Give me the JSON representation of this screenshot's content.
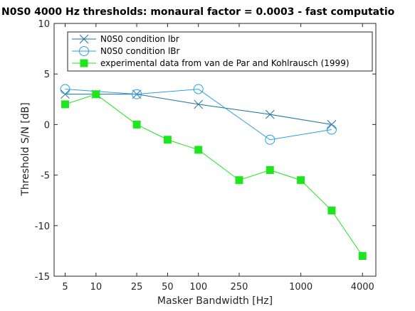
{
  "chart_data": {
    "type": "line",
    "title": "N0S0 4000 Hz thresholds: monaural factor = 0.0003 - fast computatio",
    "xlabel": "Masker Bandwidth [Hz]",
    "ylabel": "Threshold S/N [dB]",
    "xscale": "log",
    "xlim": [
      3.9,
      5400
    ],
    "ylim": [
      -15,
      10
    ],
    "xticks": [
      5,
      10,
      25,
      50,
      100,
      250,
      1000,
      4000
    ],
    "xtick_labels": [
      "5",
      "10",
      "25",
      "50",
      "100",
      "250",
      "1000",
      "4000"
    ],
    "yticks": [
      10,
      5,
      0,
      -5,
      -10,
      -15
    ],
    "ytick_labels": [
      "10",
      "5",
      "0",
      "-5",
      "-10",
      "-15"
    ],
    "grid": false,
    "legend_position": "top-right",
    "series": [
      {
        "name": "N0S0 condition lbr",
        "marker": "x",
        "color": "#1f6f9f",
        "x": [
          5,
          10,
          25,
          100,
          500,
          2000
        ],
        "y": [
          3,
          3,
          3,
          2,
          1,
          0
        ]
      },
      {
        "name": "N0S0 condition lBr",
        "marker": "circle",
        "color": "#2b9fe0",
        "x": [
          5,
          25,
          100,
          500,
          2000
        ],
        "y": [
          3.5,
          3,
          3.5,
          -1.5,
          -0.5
        ]
      },
      {
        "name": "experimental data from van de Par and Kohlrausch (1999)",
        "marker": "square",
        "color": "#1ee61e",
        "x": [
          5,
          10,
          25,
          50,
          100,
          250,
          500,
          1000,
          2000,
          4000
        ],
        "y": [
          2,
          3,
          0,
          -1.5,
          -2.5,
          -5.5,
          -4.5,
          -5.5,
          -8.5,
          -13
        ]
      }
    ]
  }
}
